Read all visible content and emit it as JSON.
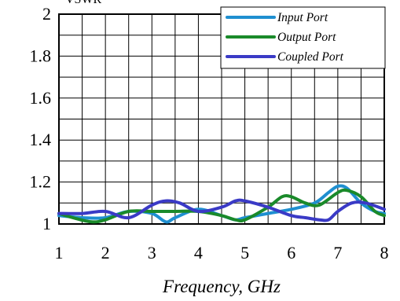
{
  "chart_data": {
    "type": "line",
    "title": "",
    "ylabel_partial": "VSWR",
    "xlabel": "Frequency, GHz",
    "xlim": [
      1,
      8
    ],
    "ylim": [
      1,
      2
    ],
    "x_ticks": [
      "1",
      "2",
      "3",
      "4",
      "5",
      "6",
      "7",
      "8"
    ],
    "y_ticks": [
      "1",
      "1.2",
      "1.4",
      "1.6",
      "1.8",
      "2"
    ],
    "grid": true,
    "legend_position": "top-right",
    "series": [
      {
        "name": "Input Port",
        "color": "#1f8fd0",
        "x": [
          1.0,
          1.5,
          2.0,
          2.5,
          3.0,
          3.3,
          3.5,
          4.0,
          4.5,
          4.8,
          5.0,
          5.5,
          6.0,
          6.5,
          6.8,
          7.0,
          7.2,
          7.5,
          7.8,
          8.0
        ],
        "y": [
          1.04,
          1.03,
          1.03,
          1.06,
          1.05,
          1.01,
          1.03,
          1.07,
          1.04,
          1.02,
          1.03,
          1.05,
          1.07,
          1.1,
          1.15,
          1.18,
          1.17,
          1.1,
          1.06,
          1.05
        ]
      },
      {
        "name": "Output Port",
        "color": "#1a8a2a",
        "x": [
          1.0,
          1.3,
          1.7,
          2.0,
          2.5,
          3.0,
          3.5,
          4.0,
          4.5,
          4.8,
          5.0,
          5.5,
          5.8,
          6.0,
          6.3,
          6.6,
          7.0,
          7.2,
          7.5,
          7.8,
          8.0
        ],
        "y": [
          1.05,
          1.03,
          1.01,
          1.02,
          1.06,
          1.06,
          1.06,
          1.06,
          1.04,
          1.02,
          1.02,
          1.08,
          1.13,
          1.13,
          1.1,
          1.09,
          1.15,
          1.16,
          1.13,
          1.06,
          1.04
        ]
      },
      {
        "name": "Coupled Port",
        "color": "#3a3ac6",
        "x": [
          1.0,
          1.5,
          2.0,
          2.5,
          3.0,
          3.3,
          3.6,
          4.0,
          4.5,
          4.8,
          5.0,
          5.5,
          6.0,
          6.3,
          6.6,
          6.8,
          7.0,
          7.3,
          7.6,
          8.0
        ],
        "y": [
          1.05,
          1.05,
          1.06,
          1.03,
          1.09,
          1.11,
          1.1,
          1.06,
          1.08,
          1.11,
          1.11,
          1.08,
          1.04,
          1.03,
          1.02,
          1.02,
          1.06,
          1.1,
          1.1,
          1.07
        ]
      }
    ]
  }
}
